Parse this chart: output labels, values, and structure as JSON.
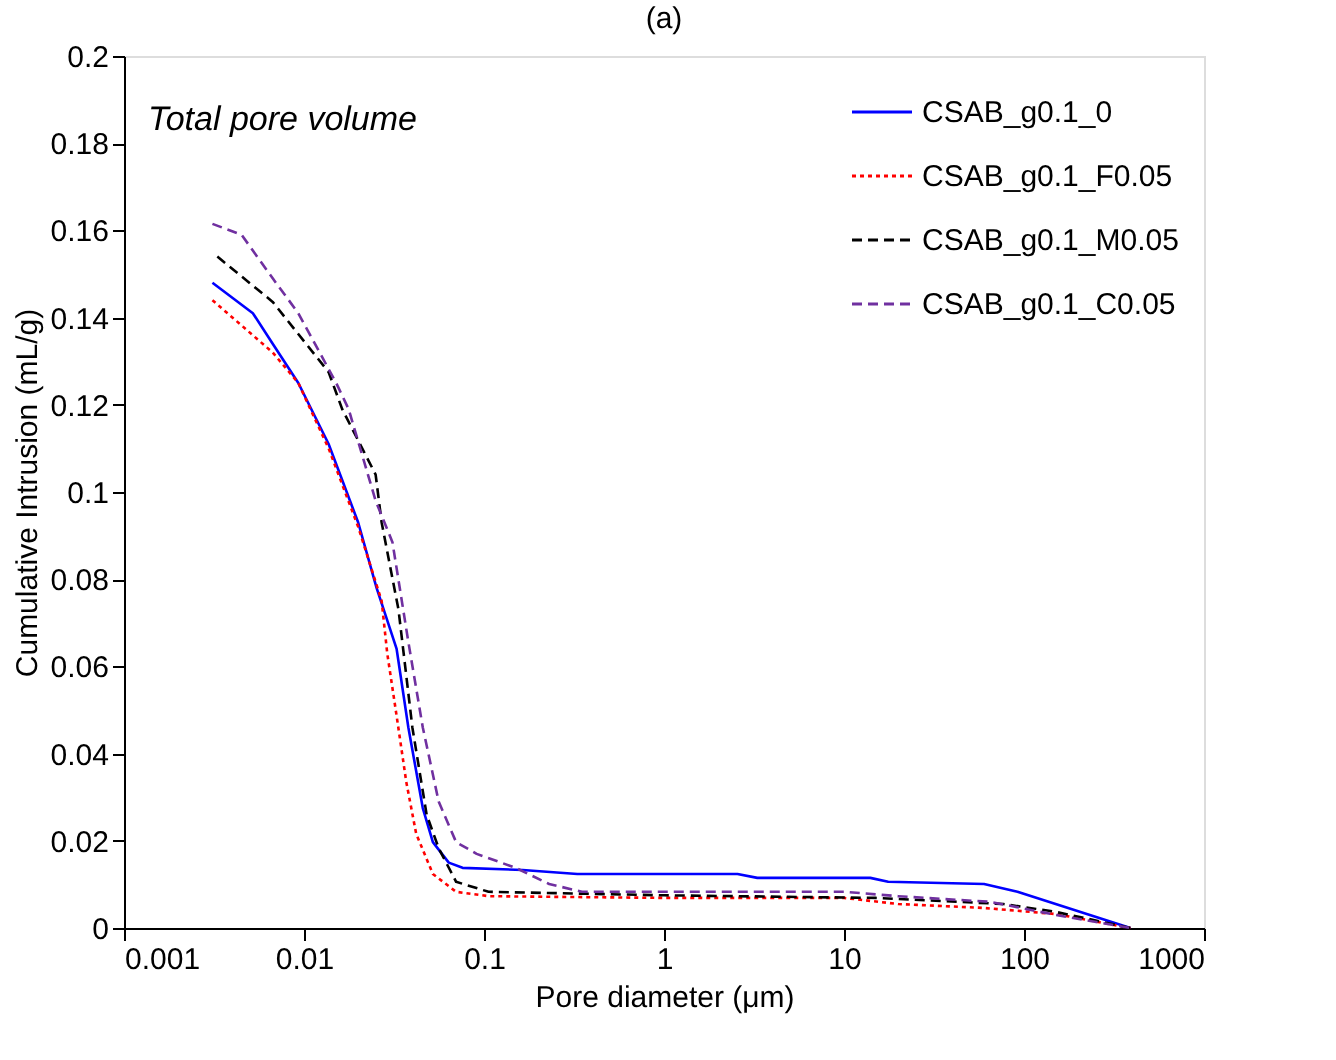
{
  "chart_data": {
    "type": "line",
    "title": "(a)",
    "xlabel": "Pore diameter (μm)",
    "ylabel": "Cumulative Intrusion (mL/g)",
    "annotations": [
      "Total pore volume"
    ],
    "log": "x",
    "xlim": [
      0.001,
      1000
    ],
    "xticks": [
      0.001,
      0.01,
      0.1,
      1,
      10,
      100,
      1000
    ],
    "ylim": [
      0,
      0.2
    ],
    "yticks": [
      0,
      0.02,
      0.04,
      0.06,
      0.08,
      0.1,
      0.12,
      0.14,
      0.16,
      0.18,
      0.2
    ],
    "grid": false,
    "legend": "top right",
    "marker": "none",
    "series": [
      {
        "name": "CSAB_g0.1_0",
        "color": "#0000ff",
        "line_style": "solid",
        "x": [
          0.0031,
          0.0052,
          0.0067,
          0.0093,
          0.0137,
          0.02,
          0.0253,
          0.0327,
          0.038,
          0.0457,
          0.052,
          0.0637,
          0.076,
          0.164,
          0.33,
          2.56,
          3.3,
          14,
          17.6,
          60,
          92,
          390
        ],
        "values": [
          0.148,
          0.141,
          0.134,
          0.125,
          0.111,
          0.093,
          0.078,
          0.064,
          0.046,
          0.0275,
          0.0197,
          0.015,
          0.0138,
          0.0133,
          0.0124,
          0.0124,
          0.0115,
          0.0115,
          0.0106,
          0.0101,
          0.0083,
          0
        ]
      },
      {
        "name": "CSAB_g0.1_F0.05",
        "color": "#ff0000",
        "line_style": "dotted",
        "x": [
          0.0031,
          0.0067,
          0.0093,
          0.0137,
          0.02,
          0.027,
          0.029,
          0.0326,
          0.037,
          0.042,
          0.052,
          0.07,
          0.106,
          1,
          10,
          20,
          60,
          150,
          390
        ],
        "values": [
          0.144,
          0.132,
          0.125,
          0.11,
          0.092,
          0.075,
          0.063,
          0.049,
          0.0335,
          0.0216,
          0.0124,
          0.0083,
          0.0073,
          0.0069,
          0.0069,
          0.0055,
          0.0046,
          0.0032,
          0
        ]
      },
      {
        "name": "CSAB_g0.1_M0.05",
        "color": "#000000",
        "line_style": "dashed",
        "x": [
          0.0033,
          0.0067,
          0.0137,
          0.0163,
          0.025,
          0.027,
          0.0335,
          0.04,
          0.048,
          0.056,
          0.07,
          0.106,
          1,
          15,
          77,
          150,
          390
        ],
        "values": [
          0.154,
          0.1436,
          0.1275,
          0.119,
          0.104,
          0.093,
          0.073,
          0.046,
          0.026,
          0.0183,
          0.0106,
          0.0083,
          0.0075,
          0.0069,
          0.0055,
          0.0037,
          0
        ]
      },
      {
        "name": "CSAB_g0.1_C0.05",
        "color": "#7030a0",
        "line_style": "dashed",
        "x": [
          0.0031,
          0.0045,
          0.0067,
          0.0093,
          0.0151,
          0.0177,
          0.025,
          0.031,
          0.038,
          0.0457,
          0.056,
          0.07,
          0.091,
          0.15,
          0.23,
          0.35,
          10,
          20,
          65,
          150,
          390
        ],
        "values": [
          0.1615,
          0.159,
          0.149,
          0.141,
          0.125,
          0.119,
          0.098,
          0.0885,
          0.0656,
          0.046,
          0.029,
          0.0197,
          0.017,
          0.0138,
          0.0101,
          0.0083,
          0.0083,
          0.0073,
          0.006,
          0.003,
          0
        ]
      }
    ]
  }
}
